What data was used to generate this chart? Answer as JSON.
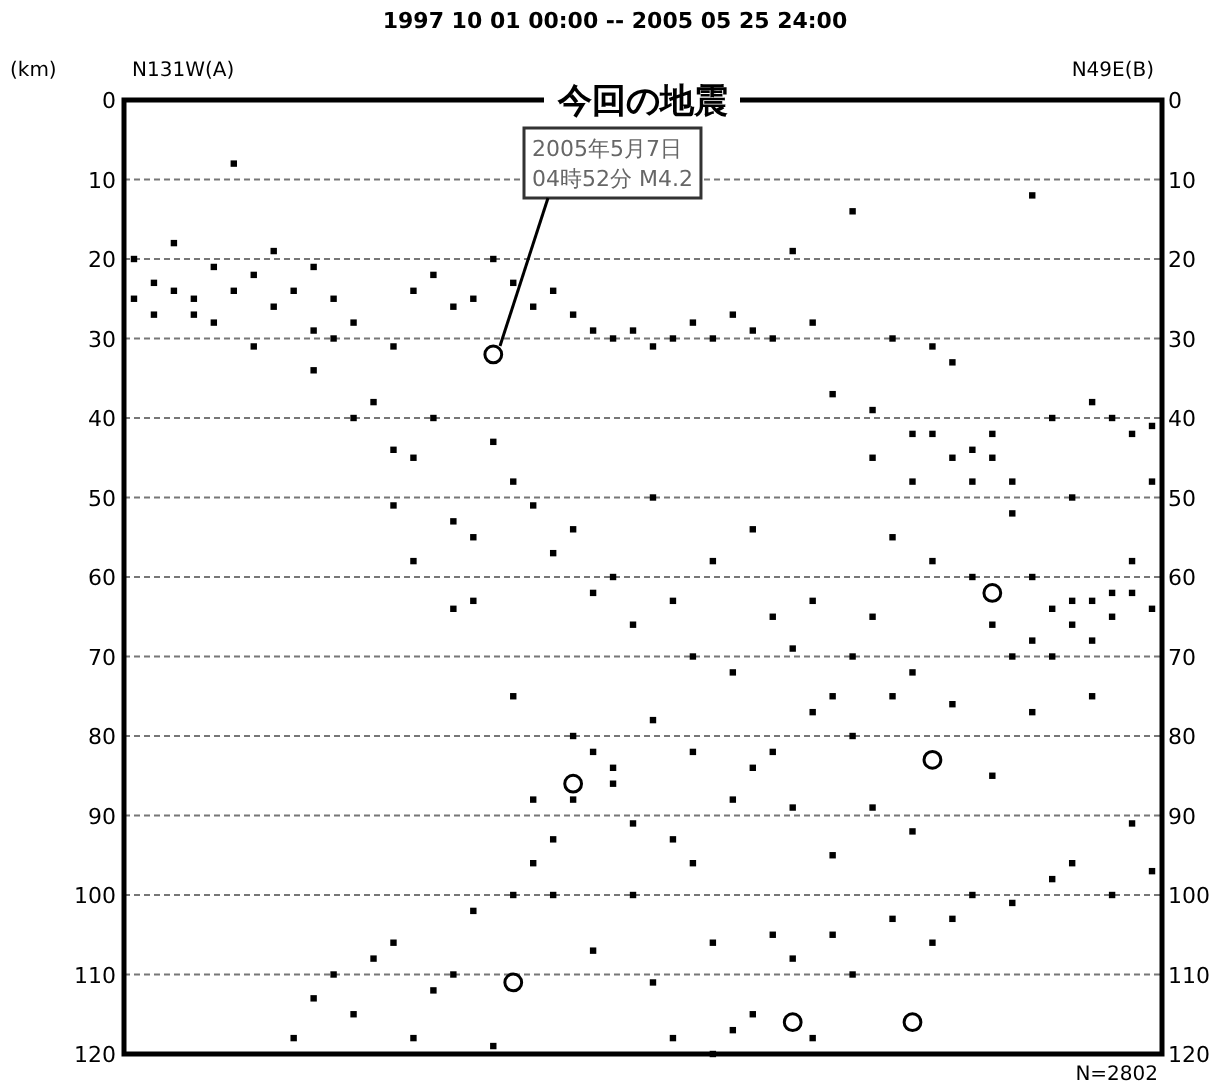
{
  "chart_data": {
    "type": "scatter",
    "title": "1997 10 01 00:00 -- 2005 05 25 24:00",
    "ylabel": "(km)",
    "annotations": [
      "今回の地震",
      "N131W(A)",
      "N49E(B)",
      "N=2802",
      "2005年5月7日\n04時52分 M4.2"
    ],
    "categories": [
      null,
      null,
      null,
      null,
      null,
      null,
      null,
      null,
      null,
      null,
      null,
      null,
      null,
      null,
      null,
      null,
      null,
      null,
      null,
      null,
      null,
      null,
      null,
      null,
      null,
      null,
      null,
      null,
      null,
      null,
      null,
      null,
      null,
      null,
      null,
      null,
      null,
      null,
      null,
      null,
      null,
      null,
      null,
      null,
      null,
      null,
      null,
      null,
      null,
      null,
      null,
      null
    ],
    "series": [
      {
        "color": "#000000",
        "values": [
          20,
          23,
          18,
          25,
          21,
          8,
          22,
          19,
          24,
          21,
          25,
          28,
          38,
          44,
          24,
          22,
          26,
          25,
          20,
          23,
          26,
          24,
          27,
          29,
          30,
          29,
          31,
          30,
          28,
          30,
          27,
          29,
          30,
          19,
          28,
          37,
          14,
          39,
          30,
          42,
          31,
          33,
          44,
          42,
          48,
          12,
          40,
          50,
          38,
          40,
          42,
          41
        ]
      },
      {
        "color": "#000000",
        "values": [
          null,
          null,
          null,
          27,
          null,
          24,
          null,
          26,
          null,
          29,
          30,
          null,
          null,
          31,
          45,
          40,
          53,
          55,
          43,
          48,
          51,
          57,
          54,
          62,
          60,
          66,
          50,
          63,
          70,
          58,
          72,
          54,
          65,
          69,
          63,
          75,
          70,
          65,
          75,
          72,
          58,
          76,
          48,
          45,
          52,
          60,
          64,
          66,
          63,
          65,
          62,
          64
        ]
      },
      {
        "color": "#000000",
        "values": [
          null,
          null,
          null,
          null,
          null,
          null,
          null,
          null,
          118,
          113,
          110,
          115,
          108,
          106,
          118,
          112,
          110,
          102,
          119,
          100,
          96,
          93,
          80,
          82,
          86,
          91,
          111,
          118,
          96,
          120,
          117,
          115,
          82,
          108,
          118,
          105,
          110,
          89,
          103,
          92,
          106,
          103,
          100,
          85,
          101,
          77,
          98,
          96,
          75,
          100,
          91,
          97
        ]
      },
      {
        "color": "#000000",
        "values": [
          25,
          27,
          24,
          null,
          28,
          null,
          31,
          null,
          null,
          34,
          null,
          40,
          null,
          51,
          58,
          null,
          64,
          63,
          null,
          75,
          88,
          100,
          88,
          107,
          84,
          100,
          78,
          93,
          82,
          106,
          88,
          84,
          105,
          89,
          77,
          95,
          80,
          45,
          55,
          48,
          42,
          45,
          60,
          66,
          70,
          68,
          70,
          63,
          68,
          62,
          58,
          48
        ]
      },
      {
        "color": "#000000",
        "marker": "circle",
        "values": [
          null,
          null,
          null,
          null,
          null,
          null,
          null,
          null,
          null,
          null,
          null,
          null,
          null,
          null,
          null,
          null,
          null,
          null,
          32,
          111,
          null,
          null,
          86,
          null,
          null,
          null,
          null,
          null,
          null,
          null,
          null,
          null,
          null,
          116,
          null,
          null,
          null,
          null,
          null,
          116,
          83,
          null,
          null,
          62,
          null,
          null,
          null,
          null,
          null,
          null,
          null,
          null
        ]
      }
    ],
    "marker": "square",
    "ylim": [
      120,
      0
    ],
    "yticks": [
      0,
      10,
      20,
      30,
      40,
      50,
      60,
      70,
      80,
      90,
      100,
      110,
      120
    ],
    "y2lim": [
      120,
      0
    ],
    "y2ticks": [
      0,
      10,
      20,
      30,
      40,
      50,
      60,
      70,
      80,
      90,
      100,
      110,
      120
    ],
    "grid": "y",
    "tick_labels": "y"
  }
}
